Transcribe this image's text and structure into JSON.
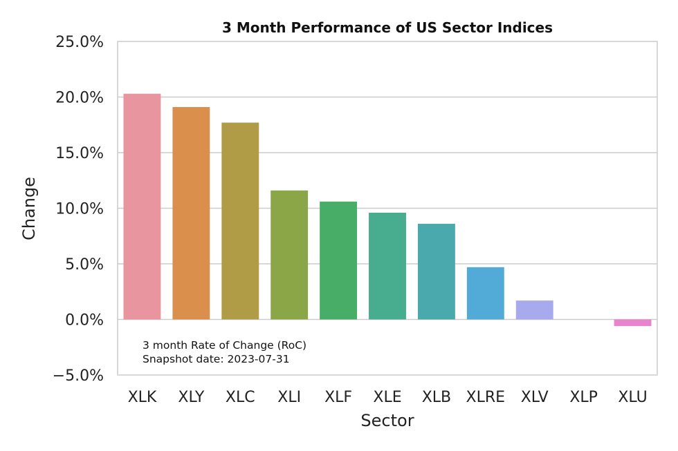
{
  "chart_data": {
    "type": "bar",
    "title": "3 Month Performance of US Sector Indices",
    "xlabel": "Sector",
    "ylabel": "Change",
    "categories": [
      "XLK",
      "XLY",
      "XLC",
      "XLI",
      "XLF",
      "XLE",
      "XLB",
      "XLRE",
      "XLV",
      "XLP",
      "XLU"
    ],
    "values": [
      20.3,
      19.1,
      17.7,
      11.6,
      10.6,
      9.6,
      8.6,
      4.7,
      1.7,
      0.0,
      -0.6
    ],
    "colors": [
      "#e8959f",
      "#db8f4d",
      "#b09c47",
      "#8aa646",
      "#48ad67",
      "#47ad8e",
      "#4aa9ad",
      "#52aad6",
      "#a7aaec",
      "#e28fe0",
      "#e884cc"
    ],
    "ylim": [
      -5.0,
      25.0
    ],
    "yticks": [
      "−5.0%",
      "0.0%",
      "5.0%",
      "10.0%",
      "15.0%",
      "20.0%",
      "25.0%"
    ],
    "ytick_values": [
      -5,
      0,
      5,
      10,
      15,
      20,
      25
    ],
    "grid": true,
    "annotations": [
      "3 month Rate of Change (RoC)",
      "Snapshot date: 2023-07-31"
    ]
  }
}
